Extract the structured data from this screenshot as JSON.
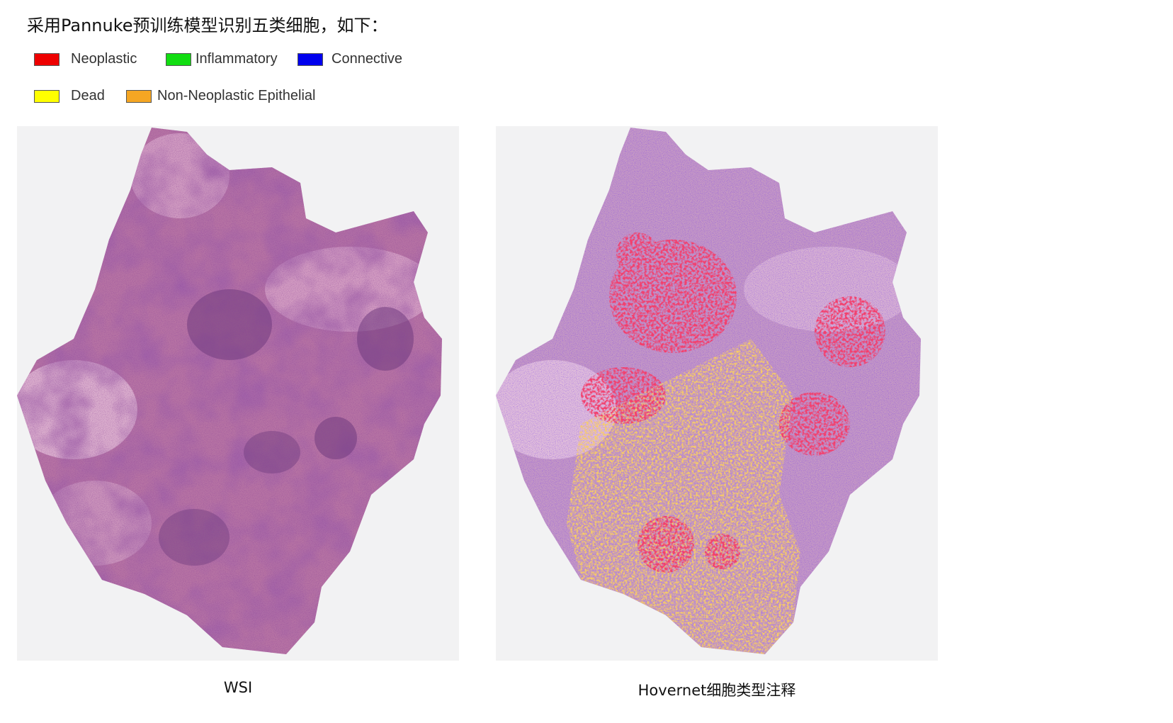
{
  "heading": "采用Pannuke预训练模型识别五类细胞，如下：",
  "legend": [
    {
      "label": "Neoplastic",
      "color": "#ee0000"
    },
    {
      "label": "Inflammatory",
      "color": "#11dd11"
    },
    {
      "label": "Connective",
      "color": "#0000ee"
    },
    {
      "label": "Dead",
      "color": "#ffff00"
    },
    {
      "label": "Non-Neoplastic Epithelial",
      "color": "#f5a623"
    }
  ],
  "panels": {
    "left_caption": "WSI",
    "right_caption": "Hovernet细胞类型注释"
  }
}
